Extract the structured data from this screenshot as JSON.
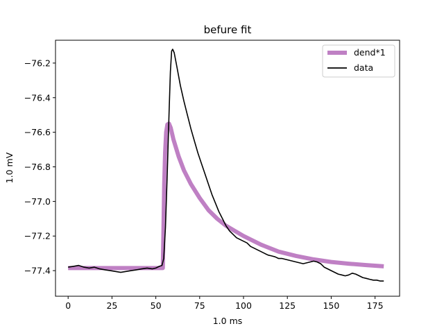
{
  "chart_data": {
    "type": "line",
    "title": "befure fit",
    "xlabel": "1.0 ms",
    "ylabel": "1.0 mV",
    "xlim": [
      -7.2,
      189.0
    ],
    "ylim": [
      -77.548,
      -76.068
    ],
    "xticks": [
      0,
      25,
      50,
      75,
      100,
      125,
      150,
      175
    ],
    "yticks": [
      -77.4,
      -77.2,
      -77.0,
      -76.8,
      -76.6,
      -76.4,
      -76.2
    ],
    "ytick_labels": [
      "−77.4",
      "−77.2",
      "−77.0",
      "−76.8",
      "−76.6",
      "−76.4",
      "−76.2"
    ],
    "grid": false,
    "legend_position": "top-right",
    "series": [
      {
        "name": "dend*1",
        "color": "#bf80c4",
        "points": [
          [
            0,
            -77.385
          ],
          [
            54,
            -77.385
          ],
          [
            54.3,
            -77.2
          ],
          [
            54.8,
            -76.9
          ],
          [
            55.3,
            -76.72
          ],
          [
            55.9,
            -76.6
          ],
          [
            56.6,
            -76.555
          ],
          [
            57.5,
            -76.55
          ],
          [
            58.5,
            -76.575
          ],
          [
            60,
            -76.64
          ],
          [
            63,
            -76.74
          ],
          [
            66,
            -76.82
          ],
          [
            70,
            -76.9
          ],
          [
            75,
            -76.98
          ],
          [
            80,
            -77.05
          ],
          [
            85,
            -77.1
          ],
          [
            90,
            -77.14
          ],
          [
            95,
            -77.17
          ],
          [
            100,
            -77.2
          ],
          [
            110,
            -77.25
          ],
          [
            120,
            -77.29
          ],
          [
            130,
            -77.315
          ],
          [
            140,
            -77.335
          ],
          [
            150,
            -77.35
          ],
          [
            160,
            -77.36
          ],
          [
            170,
            -77.368
          ],
          [
            180,
            -77.375
          ]
        ]
      },
      {
        "name": "data",
        "color": "#000000",
        "points": [
          [
            0,
            -77.38
          ],
          [
            3,
            -77.375
          ],
          [
            6,
            -77.37
          ],
          [
            9,
            -77.38
          ],
          [
            12,
            -77.385
          ],
          [
            15,
            -77.38
          ],
          [
            18,
            -77.39
          ],
          [
            21,
            -77.395
          ],
          [
            24,
            -77.4
          ],
          [
            27,
            -77.405
          ],
          [
            30,
            -77.41
          ],
          [
            33,
            -77.405
          ],
          [
            36,
            -77.4
          ],
          [
            39,
            -77.395
          ],
          [
            42,
            -77.39
          ],
          [
            45,
            -77.385
          ],
          [
            48,
            -77.39
          ],
          [
            50,
            -77.385
          ],
          [
            52,
            -77.375
          ],
          [
            53.5,
            -77.37
          ],
          [
            54.5,
            -77.33
          ],
          [
            55.5,
            -77.15
          ],
          [
            56.5,
            -76.85
          ],
          [
            57.5,
            -76.5
          ],
          [
            58.3,
            -76.25
          ],
          [
            59,
            -76.13
          ],
          [
            59.6,
            -76.12
          ],
          [
            60.5,
            -76.14
          ],
          [
            62,
            -76.22
          ],
          [
            64,
            -76.33
          ],
          [
            66,
            -76.42
          ],
          [
            68,
            -76.5
          ],
          [
            70,
            -76.58
          ],
          [
            72,
            -76.65
          ],
          [
            74,
            -76.72
          ],
          [
            76,
            -76.78
          ],
          [
            78,
            -76.84
          ],
          [
            80,
            -76.9
          ],
          [
            82,
            -76.96
          ],
          [
            84,
            -77.01
          ],
          [
            86,
            -77.06
          ],
          [
            88,
            -77.1
          ],
          [
            90,
            -77.14
          ],
          [
            92,
            -77.17
          ],
          [
            94,
            -77.19
          ],
          [
            96,
            -77.21
          ],
          [
            98,
            -77.22
          ],
          [
            100,
            -77.23
          ],
          [
            102,
            -77.24
          ],
          [
            104,
            -77.26
          ],
          [
            106,
            -77.27
          ],
          [
            108,
            -77.28
          ],
          [
            110,
            -77.29
          ],
          [
            112,
            -77.3
          ],
          [
            114,
            -77.31
          ],
          [
            116,
            -77.315
          ],
          [
            118,
            -77.32
          ],
          [
            120,
            -77.33
          ],
          [
            122,
            -77.33
          ],
          [
            124,
            -77.335
          ],
          [
            126,
            -77.34
          ],
          [
            128,
            -77.345
          ],
          [
            130,
            -77.35
          ],
          [
            132,
            -77.355
          ],
          [
            134,
            -77.36
          ],
          [
            136,
            -77.355
          ],
          [
            138,
            -77.35
          ],
          [
            140,
            -77.345
          ],
          [
            142,
            -77.35
          ],
          [
            144,
            -77.36
          ],
          [
            146,
            -77.38
          ],
          [
            148,
            -77.39
          ],
          [
            150,
            -77.4
          ],
          [
            152,
            -77.41
          ],
          [
            154,
            -77.42
          ],
          [
            156,
            -77.425
          ],
          [
            158,
            -77.43
          ],
          [
            160,
            -77.425
          ],
          [
            162,
            -77.415
          ],
          [
            164,
            -77.42
          ],
          [
            166,
            -77.43
          ],
          [
            168,
            -77.44
          ],
          [
            170,
            -77.445
          ],
          [
            172,
            -77.45
          ],
          [
            174,
            -77.455
          ],
          [
            176,
            -77.455
          ],
          [
            178,
            -77.46
          ],
          [
            180,
            -77.46
          ]
        ]
      }
    ]
  }
}
